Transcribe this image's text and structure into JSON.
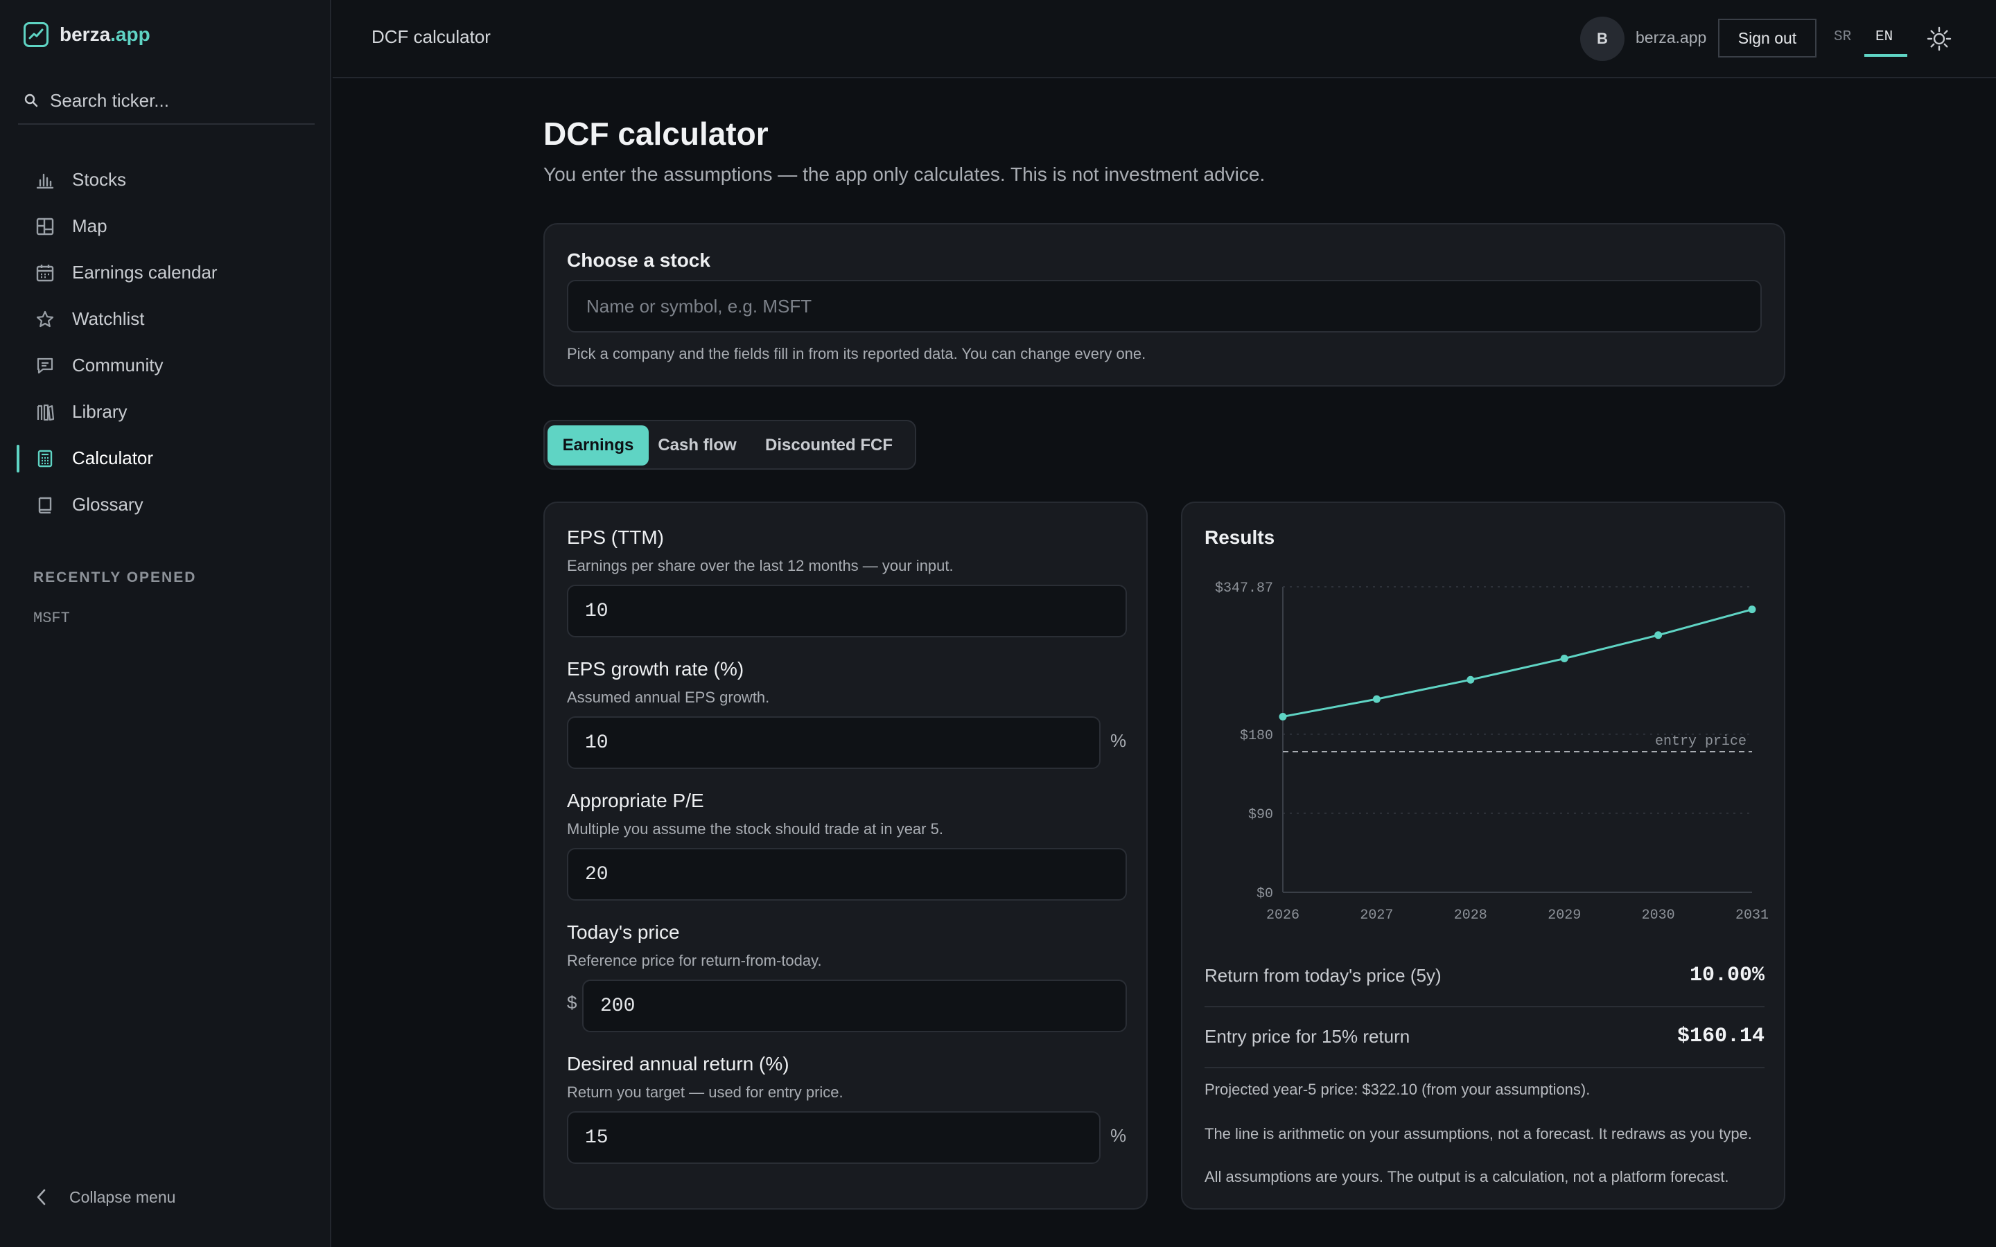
{
  "app": {
    "brand_name": "berza",
    "brand_tld": ".app",
    "search_placeholder": "Search ticker..."
  },
  "sidebar": {
    "items": [
      {
        "label": "Stocks",
        "icon": "bar-chart-icon",
        "active": false
      },
      {
        "label": "Map",
        "icon": "grid-map-icon",
        "active": false
      },
      {
        "label": "Earnings calendar",
        "icon": "calendar-icon",
        "active": false
      },
      {
        "label": "Watchlist",
        "icon": "star-icon",
        "active": false
      },
      {
        "label": "Community",
        "icon": "chat-icon",
        "active": false
      },
      {
        "label": "Library",
        "icon": "books-icon",
        "active": false
      },
      {
        "label": "Calculator",
        "icon": "calculator-icon",
        "active": true
      },
      {
        "label": "Glossary",
        "icon": "book-icon",
        "active": false
      }
    ],
    "recent_heading": "RECENTLY OPENED",
    "recent_items": [
      "MSFT"
    ],
    "collapse_label": "Collapse menu"
  },
  "topbar": {
    "title": "DCF calculator",
    "avatar_initial": "B",
    "user_name": "berza.app",
    "sign_out_label": "Sign out",
    "lang_sr": "SR",
    "lang_en": "EN",
    "active_lang": "EN"
  },
  "page": {
    "title": "DCF calculator",
    "subtitle": "You enter the assumptions — the app only calculates. This is not investment advice."
  },
  "choose": {
    "title": "Choose a stock",
    "placeholder": "Name or symbol, e.g. MSFT",
    "hint": "Pick a company and the fields fill in from its reported data. You can change every one."
  },
  "tabs": [
    {
      "label": "Earnings",
      "active": true
    },
    {
      "label": "Cash flow",
      "active": false
    },
    {
      "label": "Discounted FCF",
      "active": false
    }
  ],
  "inputs": {
    "eps": {
      "label": "EPS (TTM)",
      "help": "Earnings per share over the last 12 months — your input.",
      "value": "10"
    },
    "growth": {
      "label": "EPS growth rate (%)",
      "help": "Assumed annual EPS growth.",
      "value": "10",
      "suffix": "%"
    },
    "pe": {
      "label": "Appropriate P/E",
      "help": "Multiple you assume the stock should trade at in year 5.",
      "value": "20"
    },
    "price": {
      "label": "Today's price",
      "help": "Reference price for return-from-today.",
      "value": "200",
      "prefix": "$"
    },
    "return": {
      "label": "Desired annual return (%)",
      "help": "Return you target — used for entry price.",
      "value": "15",
      "suffix": "%"
    }
  },
  "results": {
    "title": "Results",
    "return_label": "Return from today's price (5y)",
    "return_value": "10.00%",
    "entry_label": "Entry price for 15% return",
    "entry_value": "$160.14",
    "note_projected": "Projected year-5 price: $322.10 (from your assumptions).",
    "note_line": "The line is arithmetic on your assumptions, not a forecast. It redraws as you type.",
    "note_assumptions": "All assumptions are yours. The output is a calculation, not a platform forecast."
  },
  "colors": {
    "accent": "#5fd4c4",
    "background": "#0d1014",
    "card": "#181b20"
  },
  "chart_data": {
    "type": "line",
    "x": [
      "2026",
      "2027",
      "2028",
      "2029",
      "2030",
      "2031"
    ],
    "series": [
      {
        "values": [
          200,
          220,
          242,
          266.2,
          292.82,
          322.1
        ]
      }
    ],
    "reference_line": {
      "label": "entry price",
      "value": 160.14
    },
    "y_ticks": [
      {
        "value": 0,
        "label": "$0"
      },
      {
        "value": 90,
        "label": "$90"
      },
      {
        "value": 180,
        "label": "$180"
      },
      {
        "value": 347.87,
        "label": "$347.87"
      }
    ],
    "ylim": [
      0,
      347.87
    ],
    "grid": true
  }
}
